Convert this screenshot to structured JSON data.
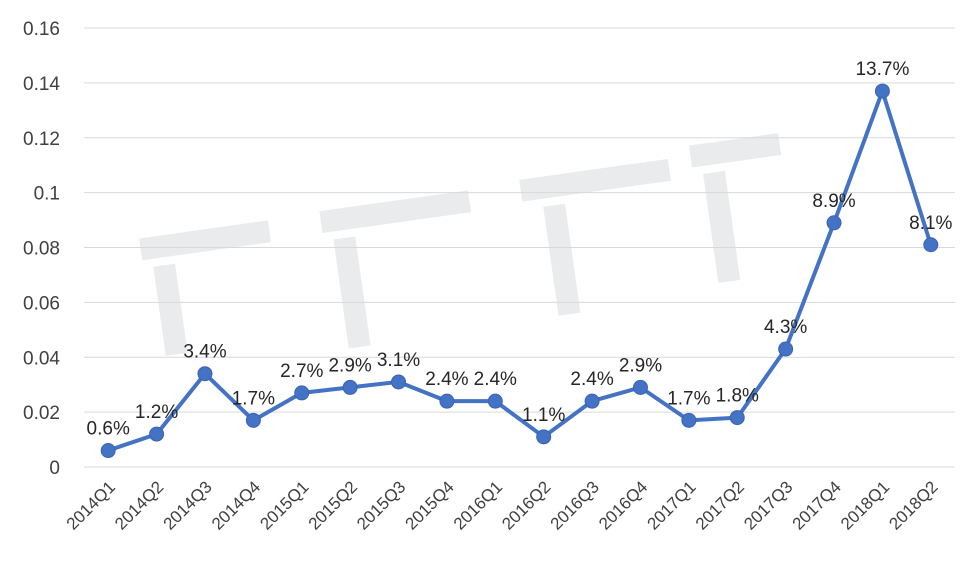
{
  "chart_data": {
    "type": "line",
    "title": "",
    "xlabel": "",
    "ylabel": "",
    "ylim": [
      0,
      0.16
    ],
    "yticks": [
      "0",
      "0.02",
      "0.04",
      "0.06",
      "0.08",
      "0.1",
      "0.12",
      "0.14",
      "0.16"
    ],
    "grid": true,
    "legend": "none",
    "categories": [
      "2014Q1",
      "2014Q2",
      "2014Q3",
      "2014Q4",
      "2015Q1",
      "2015Q2",
      "2015Q3",
      "2015Q4",
      "2016Q1",
      "2016Q2",
      "2016Q3",
      "2016Q4",
      "2017Q1",
      "2017Q2",
      "2017Q3",
      "2017Q4",
      "2018Q1",
      "2018Q2"
    ],
    "series": [
      {
        "values": [
          0.006,
          0.012,
          0.034,
          0.017,
          0.027,
          0.029,
          0.031,
          0.024,
          0.024,
          0.011,
          0.024,
          0.029,
          0.017,
          0.018,
          0.043,
          0.089,
          0.137,
          0.081
        ],
        "labels": [
          "0.6%",
          "1.2%",
          "3.4%",
          "1.7%",
          "2.7%",
          "2.9%",
          "3.1%",
          "2.4%",
          "2.4%",
          "1.1%",
          "2.4%",
          "2.9%",
          "1.7%",
          "1.8%",
          "4.3%",
          "8.9%",
          "13.7%",
          "8.1%"
        ],
        "color": "#4472c4"
      }
    ]
  }
}
